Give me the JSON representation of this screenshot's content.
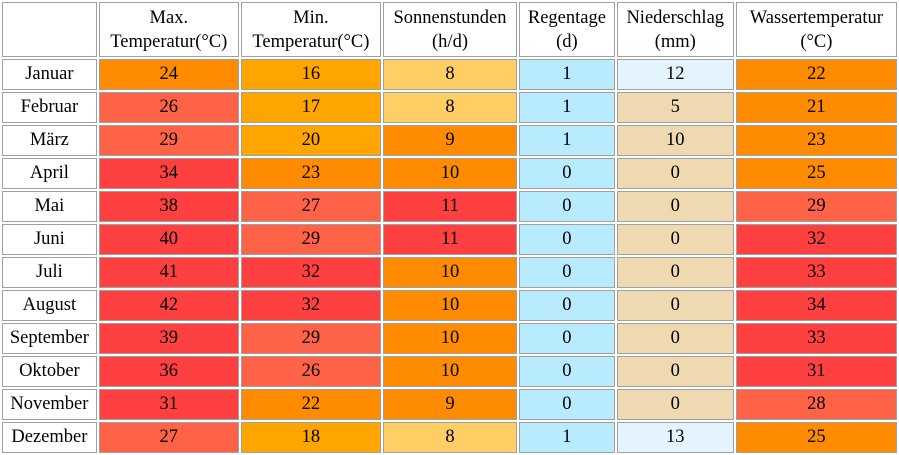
{
  "headers": [
    {
      "line1": "",
      "line2": ""
    },
    {
      "line1": "Max.",
      "line2": "Temperatur(°C)"
    },
    {
      "line1": "Min.",
      "line2": "Temperatur(°C)"
    },
    {
      "line1": "Sonnenstunden",
      "line2": "(h/d)"
    },
    {
      "line1": "Regentage",
      "line2": "(d)"
    },
    {
      "line1": "Niederschlag",
      "line2": "(mm)"
    },
    {
      "line1": "Wassertemperatur",
      "line2": "(°C)"
    }
  ],
  "rows": [
    {
      "month": "Januar",
      "max": "24",
      "min": "16",
      "sun": "8",
      "rain": "1",
      "prec": "12",
      "water": "22"
    },
    {
      "month": "Februar",
      "max": "26",
      "min": "17",
      "sun": "8",
      "rain": "1",
      "prec": "5",
      "water": "21"
    },
    {
      "month": "März",
      "max": "29",
      "min": "20",
      "sun": "9",
      "rain": "1",
      "prec": "10",
      "water": "23"
    },
    {
      "month": "April",
      "max": "34",
      "min": "23",
      "sun": "10",
      "rain": "0",
      "prec": "0",
      "water": "25"
    },
    {
      "month": "Mai",
      "max": "38",
      "min": "27",
      "sun": "11",
      "rain": "0",
      "prec": "0",
      "water": "29"
    },
    {
      "month": "Juni",
      "max": "40",
      "min": "29",
      "sun": "11",
      "rain": "0",
      "prec": "0",
      "water": "32"
    },
    {
      "month": "Juli",
      "max": "41",
      "min": "32",
      "sun": "10",
      "rain": "0",
      "prec": "0",
      "water": "33"
    },
    {
      "month": "August",
      "max": "42",
      "min": "32",
      "sun": "10",
      "rain": "0",
      "prec": "0",
      "water": "34"
    },
    {
      "month": "September",
      "max": "39",
      "min": "29",
      "sun": "10",
      "rain": "0",
      "prec": "0",
      "water": "33"
    },
    {
      "month": "Oktober",
      "max": "36",
      "min": "26",
      "sun": "10",
      "rain": "0",
      "prec": "0",
      "water": "31"
    },
    {
      "month": "November",
      "max": "31",
      "min": "22",
      "sun": "9",
      "rain": "0",
      "prec": "0",
      "water": "28"
    },
    {
      "month": "Dezember",
      "max": "27",
      "min": "18",
      "sun": "8",
      "rain": "1",
      "prec": "13",
      "water": "25"
    }
  ],
  "cell_colors": [
    {
      "max": "#ff8c00",
      "min": "#ffa500",
      "sun": "#ffcf66",
      "rain": "#b9ebff",
      "prec": "#e3f4ff",
      "water": "#ff8c00"
    },
    {
      "max": "#ff6347",
      "min": "#ffa500",
      "sun": "#ffcf66",
      "rain": "#b9ebff",
      "prec": "#eed9b0",
      "water": "#ff8c00"
    },
    {
      "max": "#ff6347",
      "min": "#ffa500",
      "sun": "#ff8c00",
      "rain": "#b9ebff",
      "prec": "#eed9b0",
      "water": "#ff8c00"
    },
    {
      "max": "#ff4040",
      "min": "#ff8c00",
      "sun": "#ff8c00",
      "rain": "#b9ebff",
      "prec": "#eed9b0",
      "water": "#ff8c00"
    },
    {
      "max": "#ff4040",
      "min": "#ff6347",
      "sun": "#ff4040",
      "rain": "#b9ebff",
      "prec": "#eed9b0",
      "water": "#ff6347"
    },
    {
      "max": "#ff4040",
      "min": "#ff6347",
      "sun": "#ff4040",
      "rain": "#b9ebff",
      "prec": "#eed9b0",
      "water": "#ff4040"
    },
    {
      "max": "#ff4040",
      "min": "#ff4040",
      "sun": "#ff8c00",
      "rain": "#b9ebff",
      "prec": "#eed9b0",
      "water": "#ff4040"
    },
    {
      "max": "#ff4040",
      "min": "#ff4040",
      "sun": "#ff8c00",
      "rain": "#b9ebff",
      "prec": "#eed9b0",
      "water": "#ff4040"
    },
    {
      "max": "#ff4040",
      "min": "#ff6347",
      "sun": "#ff8c00",
      "rain": "#b9ebff",
      "prec": "#eed9b0",
      "water": "#ff4040"
    },
    {
      "max": "#ff4040",
      "min": "#ff6347",
      "sun": "#ff8c00",
      "rain": "#b9ebff",
      "prec": "#eed9b0",
      "water": "#ff4040"
    },
    {
      "max": "#ff4040",
      "min": "#ff8c00",
      "sun": "#ff8c00",
      "rain": "#b9ebff",
      "prec": "#eed9b0",
      "water": "#ff6347"
    },
    {
      "max": "#ff6347",
      "min": "#ffa500",
      "sun": "#ffcf66",
      "rain": "#b9ebff",
      "prec": "#e3f4ff",
      "water": "#ff8c00"
    }
  ]
}
